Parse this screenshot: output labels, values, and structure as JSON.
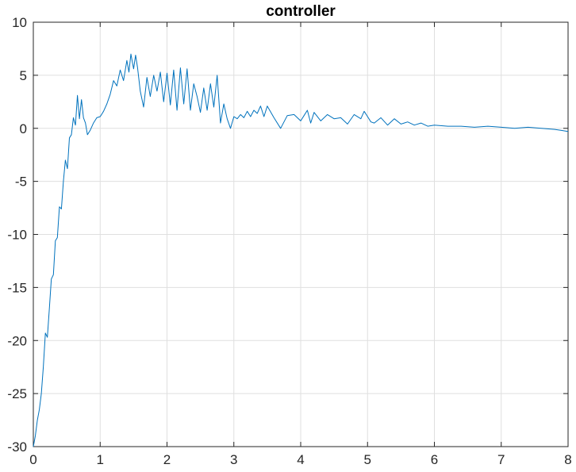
{
  "chart_data": {
    "type": "line",
    "title": "controller",
    "xlabel": "",
    "ylabel": "",
    "xlim": [
      0,
      8
    ],
    "ylim": [
      -30,
      10
    ],
    "xticks": [
      0,
      1,
      2,
      3,
      4,
      5,
      6,
      7,
      8
    ],
    "yticks": [
      10,
      5,
      0,
      -5,
      -10,
      -15,
      -20,
      -25,
      -30
    ],
    "grid": true,
    "legend": "none",
    "colors": {
      "line": "#0072BD",
      "grid": "#dfdfdf",
      "axis": "#262626"
    },
    "series": [
      {
        "x": [
          0.0,
          0.03,
          0.06,
          0.09,
          0.12,
          0.15,
          0.18,
          0.21,
          0.24,
          0.27,
          0.3,
          0.33,
          0.36,
          0.39,
          0.42,
          0.45,
          0.48,
          0.51,
          0.54,
          0.57,
          0.6,
          0.63,
          0.66,
          0.69,
          0.72,
          0.75,
          0.78,
          0.81,
          0.85,
          0.9,
          0.95,
          1.0,
          1.05,
          1.1,
          1.15,
          1.2,
          1.25,
          1.3,
          1.35,
          1.4,
          1.43,
          1.46,
          1.5,
          1.53,
          1.56,
          1.6,
          1.65,
          1.7,
          1.75,
          1.8,
          1.85,
          1.9,
          1.95,
          2.0,
          2.05,
          2.1,
          2.15,
          2.2,
          2.25,
          2.3,
          2.35,
          2.4,
          2.45,
          2.5,
          2.55,
          2.6,
          2.65,
          2.7,
          2.75,
          2.8,
          2.85,
          2.9,
          2.95,
          3.0,
          3.05,
          3.1,
          3.15,
          3.2,
          3.25,
          3.3,
          3.35,
          3.4,
          3.45,
          3.5,
          3.6,
          3.7,
          3.8,
          3.9,
          4.0,
          4.05,
          4.1,
          4.15,
          4.2,
          4.3,
          4.4,
          4.5,
          4.6,
          4.7,
          4.8,
          4.9,
          4.95,
          5.0,
          5.05,
          5.1,
          5.2,
          5.3,
          5.4,
          5.5,
          5.6,
          5.7,
          5.8,
          5.9,
          6.0,
          6.2,
          6.4,
          6.6,
          6.8,
          7.0,
          7.2,
          7.4,
          7.6,
          7.8,
          7.9,
          8.0
        ],
        "y": [
          -30.0,
          -29.0,
          -27.5,
          -26.5,
          -25.0,
          -22.5,
          -19.3,
          -19.7,
          -17.0,
          -14.2,
          -13.8,
          -10.6,
          -10.3,
          -7.4,
          -7.6,
          -5.0,
          -3.0,
          -3.8,
          -0.9,
          -0.6,
          1.0,
          0.3,
          3.1,
          0.9,
          2.7,
          1.0,
          0.5,
          -0.6,
          -0.2,
          0.5,
          1.0,
          1.1,
          1.6,
          2.3,
          3.2,
          4.5,
          4.0,
          5.5,
          4.5,
          6.4,
          5.3,
          7.0,
          5.6,
          6.9,
          5.7,
          3.5,
          2.0,
          4.8,
          3.0,
          5.0,
          3.5,
          5.3,
          2.5,
          5.2,
          2.2,
          5.5,
          1.7,
          5.7,
          2.3,
          5.6,
          1.7,
          4.2,
          3.0,
          1.5,
          3.8,
          1.7,
          4.2,
          2.0,
          5.0,
          0.5,
          2.3,
          0.9,
          0.0,
          1.1,
          0.9,
          1.3,
          1.0,
          1.6,
          1.1,
          1.7,
          1.4,
          2.1,
          1.1,
          2.1,
          1.0,
          0.0,
          1.2,
          1.3,
          0.7,
          1.2,
          1.7,
          0.5,
          1.5,
          0.7,
          1.3,
          0.9,
          1.0,
          0.4,
          1.3,
          0.9,
          1.6,
          1.1,
          0.6,
          0.5,
          1.0,
          0.3,
          0.9,
          0.4,
          0.6,
          0.3,
          0.5,
          0.2,
          0.3,
          0.2,
          0.2,
          0.1,
          0.2,
          0.1,
          0.0,
          0.1,
          0.0,
          -0.1,
          -0.2,
          -0.3
        ]
      }
    ]
  }
}
